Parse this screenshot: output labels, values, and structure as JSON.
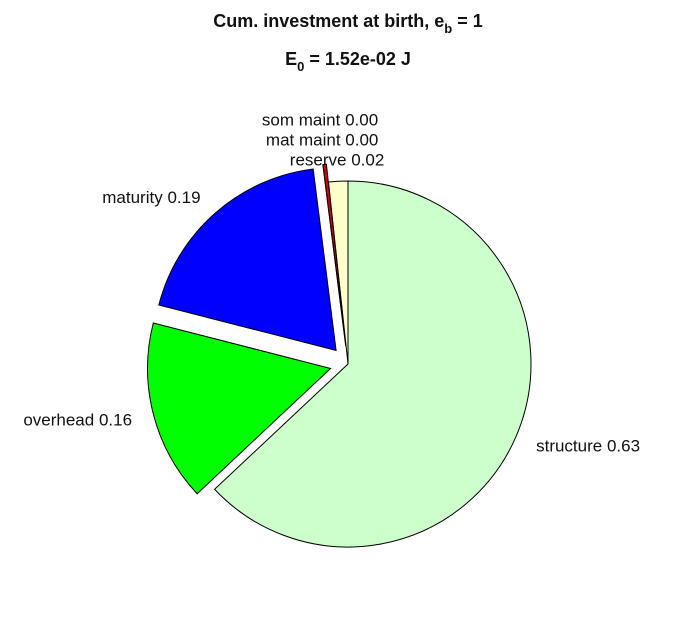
{
  "chart_data": {
    "type": "pie",
    "title": [
      "Cum. investment at birth, e",
      "b",
      " = 1"
    ],
    "subtitle": [
      "E",
      "0",
      " = 1.52e-02 J"
    ],
    "categories": [
      "reserve",
      "mat maint",
      "som maint",
      "maturity",
      "overhead",
      "structure"
    ],
    "values": [
      0.017,
      0.003,
      0.0,
      0.19,
      0.16,
      0.63
    ],
    "value_labels": [
      "0.02",
      "0.00",
      "0.00",
      "0.19",
      "0.16",
      "0.63"
    ],
    "colors": [
      "#ffffcc",
      "#e00000",
      "#cc00cc",
      "#0000ff",
      "#00ff00",
      "#ccffcc"
    ],
    "explode": [
      false,
      true,
      true,
      true,
      true,
      false
    ]
  }
}
